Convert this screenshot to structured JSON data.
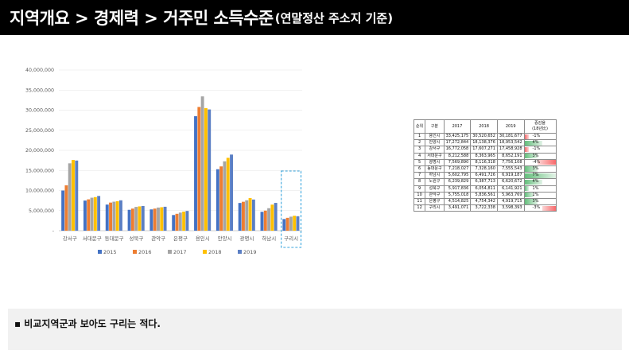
{
  "header": {
    "title": "지역개요 > 경제력 > 거주민 소득수준",
    "subtitle": "(연말정산 주소지 기준)"
  },
  "chart_data": {
    "type": "bar",
    "title": "",
    "xlabel": "",
    "ylabel": "",
    "ylim": [
      0,
      40000000
    ],
    "y_ticks": [
      "-",
      "5,000,000",
      "10,000,000",
      "15,000,000",
      "20,000,000",
      "25,000,000",
      "30,000,000",
      "35,000,000",
      "40,000,000"
    ],
    "grid": true,
    "legend_position": "bottom",
    "highlight_category": "구리시",
    "categories": [
      "강서구",
      "서대문구",
      "동대문구",
      "성북구",
      "관악구",
      "은평구",
      "용인시",
      "안양시",
      "광명시",
      "하남시",
      "구리시"
    ],
    "series": [
      {
        "name": "2015",
        "color": "#4472c4",
        "values": [
          10000000,
          7500000,
          6500000,
          5200000,
          5300000,
          3900000,
          28500000,
          15300000,
          6900000,
          4700000,
          2900000
        ]
      },
      {
        "name": "2016",
        "color": "#ed7d31",
        "values": [
          11300000,
          7800000,
          7000000,
          5500000,
          5500000,
          4200000,
          30800000,
          16000000,
          7200000,
          5000000,
          3200000
        ]
      },
      {
        "name": "2017",
        "color": "#a5a5a5",
        "values": [
          16770000,
          8210000,
          7220000,
          5920000,
          5760000,
          4510000,
          33430000,
          17270000,
          7570000,
          5600000,
          3490000
        ]
      },
      {
        "name": "2018",
        "color": "#ffc000",
        "values": [
          17610000,
          8360000,
          7330000,
          6050000,
          5840000,
          4750000,
          30520000,
          18140000,
          8120000,
          6490000,
          3720000
        ]
      },
      {
        "name": "2019",
        "color": "#5b7fc4",
        "values": [
          17460000,
          8650000,
          7560000,
          6140000,
          5960000,
          4920000,
          30180000,
          18950000,
          7760000,
          6920000,
          3600000
        ]
      }
    ]
  },
  "table": {
    "headers": [
      "순위",
      "구분",
      "2017",
      "2018",
      "2019",
      "증감율",
      "(18년比)"
    ],
    "rows": [
      {
        "rank": "1",
        "name": "용인시",
        "y2017": "33,425,175",
        "y2018": "30,520,652",
        "y2019": "30,181,677",
        "rate": "-1%",
        "rate_value": -1
      },
      {
        "rank": "2",
        "name": "안양시",
        "y2017": "17,272,844",
        "y2018": "18,138,376",
        "y2019": "18,953,542",
        "rate": "4%",
        "rate_value": 4
      },
      {
        "rank": "3",
        "name": "강서구",
        "y2017": "16,772,058",
        "y2018": "17,607,271",
        "y2019": "17,458,928",
        "rate": "-1%",
        "rate_value": -1
      },
      {
        "rank": "4",
        "name": "서대문구",
        "y2017": "8,212,588",
        "y2018": "8,363,965",
        "y2019": "8,652,191",
        "rate": "3%",
        "rate_value": 3
      },
      {
        "rank": "5",
        "name": "광명시",
        "y2017": "7,569,890",
        "y2018": "8,116,318",
        "y2019": "7,756,108",
        "rate": "-4%",
        "rate_value": -4
      },
      {
        "rank": "6",
        "name": "동대문구",
        "y2017": "7,218,027",
        "y2018": "7,328,160",
        "y2019": "7,555,543",
        "rate": "3%",
        "rate_value": 3
      },
      {
        "rank": "7",
        "name": "하남시",
        "y2017": "5,602,795",
        "y2018": "6,491,726",
        "y2019": "6,919,187",
        "rate": "7%",
        "rate_value": 7
      },
      {
        "rank": "8",
        "name": "노원구",
        "y2017": "6,239,829",
        "y2018": "6,387,713",
        "y2019": "6,620,672",
        "rate": "4%",
        "rate_value": 4
      },
      {
        "rank": "9",
        "name": "성북구",
        "y2017": "5,917,836",
        "y2018": "6,054,811",
        "y2019": "6,141,921",
        "rate": "1%",
        "rate_value": 1
      },
      {
        "rank": "10",
        "name": "관악구",
        "y2017": "5,755,018",
        "y2018": "5,836,561",
        "y2019": "5,963,769",
        "rate": "2%",
        "rate_value": 2
      },
      {
        "rank": "11",
        "name": "은평구",
        "y2017": "4,514,825",
        "y2018": "4,754,342",
        "y2019": "4,919,715",
        "rate": "3%",
        "rate_value": 3
      },
      {
        "rank": "12",
        "name": "구리시",
        "y2017": "3,491,071",
        "y2018": "3,722,338",
        "y2019": "3,598,393",
        "rate": "-3%",
        "rate_value": -3
      }
    ]
  },
  "note": {
    "text": "▪ 비교지역군과 보아도 구리는 적다."
  }
}
